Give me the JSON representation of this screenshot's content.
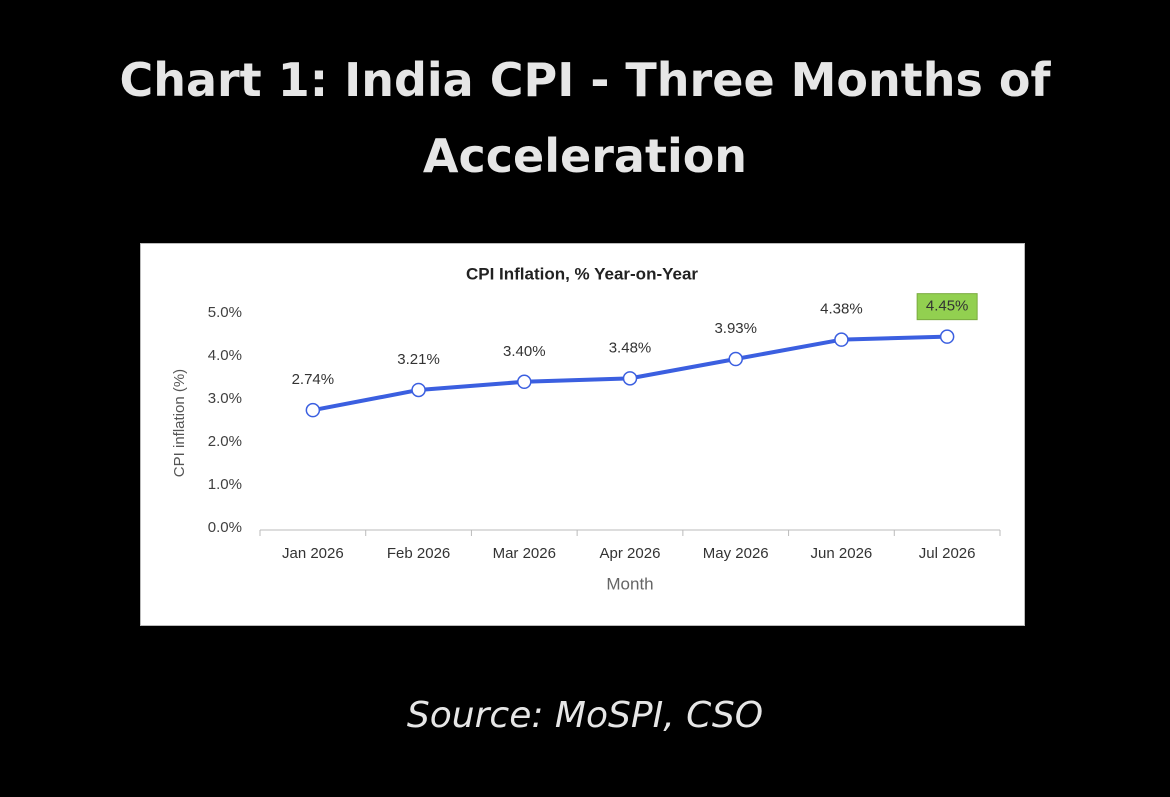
{
  "heading": "Chart 1: India CPI - Three Months of Acceleration",
  "source": "Source: MoSPI, CSO",
  "chart_data": {
    "type": "line",
    "title": "CPI Inflation, % Year-on-Year",
    "x_label": "Month",
    "y_label": "CPI inflation (%)",
    "categories": [
      "Jan 2026",
      "Feb 2026",
      "Mar 2026",
      "Apr 2026",
      "May 2026",
      "Jun 2026",
      "Jul 2026"
    ],
    "series": [
      {
        "name": "CPI inflation",
        "color": "#3b5fe0",
        "values": [
          2.74,
          3.21,
          3.4,
          3.48,
          3.93,
          4.38,
          4.45
        ],
        "value_labels": [
          "2.74%",
          "3.21%",
          "3.40%",
          "3.48%",
          "3.93%",
          "4.38%",
          "4.45%"
        ]
      }
    ],
    "ylim": [
      0,
      5
    ],
    "yticks": [
      {
        "value": 0,
        "label": "0.0%"
      },
      {
        "value": 1,
        "label": "1.0%"
      },
      {
        "value": 2,
        "label": "2.0%"
      },
      {
        "value": 3,
        "label": "3.0%"
      },
      {
        "value": 4,
        "label": "4.0%"
      },
      {
        "value": 5,
        "label": "5.0%"
      }
    ],
    "grid": false
  }
}
